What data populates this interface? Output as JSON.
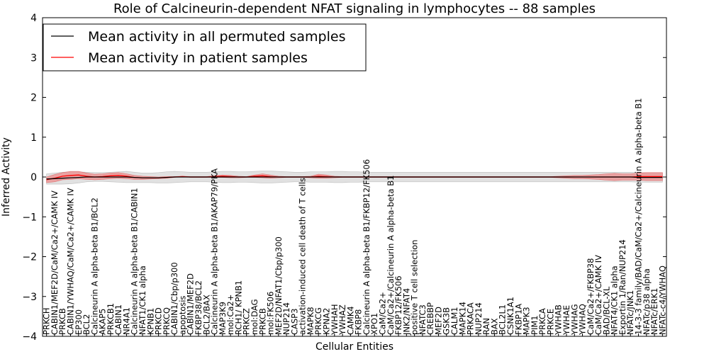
{
  "chart_data": {
    "type": "line",
    "title": "Role of Calcineurin-dependent NFAT signaling in lymphocytes -- 88 samples",
    "xlabel": "Cellular Entities",
    "ylabel": "Inferred Activity",
    "ylim": [
      -4,
      4
    ],
    "yticks": [
      -4,
      -3,
      -2,
      -1,
      0,
      1,
      2,
      3,
      4
    ],
    "ytick_labels": [
      "−4",
      "−3",
      "−2",
      "−1",
      "0",
      "1",
      "2",
      "3",
      "4"
    ],
    "legend_position": "top-left",
    "categories": [
      "PRKCH",
      "CABIN1/MEF2D/CaM/Ca2+/CAMK IV",
      "PRKCB",
      "CABIN1/YWHAQ/CaM/Ca2+/CAMK IV",
      "EP300",
      "BCL2",
      "Calcineurin A alpha-beta B1/BCL2",
      "AKAP5",
      "PRKCB1",
      "CABIN1",
      "NR4A1",
      "Calcineurin A alpha-beta B1/CABIN1",
      "NFAT1/CK1 alpha",
      "KPNB1",
      "PRKCD",
      "PRKCQ",
      "CABIN1/Cbp/p300",
      "apoptosis",
      "CABIN1/MEF2D",
      "FKBP38/BCL2",
      "BCL2/BAX",
      "Calcineurin A alpha-beta B1/AKAP79/PKA",
      "MAP3K9",
      "mol:Ca2+",
      "RCH1/ KPNB1",
      "PRKCZ",
      "mol:DAG",
      "PRKCB",
      "mol:FK506",
      "MEF2D/NFAT1/Cbp/p300",
      "NUP214",
      "CASP3",
      "activation-induced cell death of T cells",
      "MAPK8",
      "PRKCG",
      "KPNA2",
      "YWHAH",
      "YWHAZ",
      "CAMK4",
      "FKBP8",
      "Calcineurin A alpha-beta B1/FKBP12/FK506",
      "XPO1",
      "CaM/Ca2+",
      "CaM/Ca2+/Calcineurin A alpha-beta B1",
      "FKBP12/FK506",
      "JNK2/NFAT4",
      "positive T cell selection",
      "NFATC3",
      "CREBBP",
      "MEF2D",
      "GSK3B",
      "CALM1",
      "MAPK14",
      "PRKACA",
      "NUP214",
      "RAN",
      "BAX",
      "BCL2L1",
      "CSNK1A1",
      "FKBP1A",
      "MAPK3",
      "PIM1",
      "PRKCA",
      "PRKCE",
      "YWHAB",
      "YWHAE",
      "YWHAG",
      "YWHAQ",
      "CaM/Ca2+/FKBP38",
      "CaM/Ca2+/CAMK IV",
      "BAD/BCL-XL",
      "NFAT4/CK1 alpha",
      "Exportin 1/Ran/NUP214",
      "NFATc/JNK1",
      "14-3-3 family/BAD/CaM/Ca2+/Calcineurin A alpha-beta B1",
      "NFATc/p38 alpha",
      "NFATc/ERK1",
      "NFATc-c4/YWHAQ"
    ],
    "series": [
      {
        "name": "Mean activity in all permuted samples",
        "color": "#000000",
        "values": [
          -0.05,
          -0.04,
          -0.03,
          -0.02,
          -0.01,
          0.0,
          0.0,
          0.0,
          0.0,
          0.0,
          0.0,
          -0.01,
          -0.02,
          -0.02,
          -0.02,
          -0.01,
          0.0,
          0.0,
          0.0,
          0.0,
          0.0,
          0.0,
          0.0,
          0.0,
          0.0,
          0.0,
          0.0,
          0.0,
          0.0,
          0.0,
          0.0,
          0.0,
          0.0,
          0.0,
          0.0,
          0.0,
          0.0,
          0.0,
          0.0,
          0.0,
          0.0,
          0.0,
          0.0,
          0.0,
          0.0,
          0.0,
          0.0,
          0.0,
          0.0,
          0.0,
          0.0,
          0.0,
          0.0,
          0.0,
          0.0,
          0.0,
          0.0,
          0.0,
          0.0,
          0.0,
          0.0,
          0.0,
          0.0,
          0.0,
          0.0,
          0.0,
          0.0,
          0.0,
          0.0,
          0.0,
          0.0,
          0.0,
          0.0,
          0.0,
          -0.01,
          -0.01,
          -0.01,
          -0.01
        ],
        "band": [
          0.13,
          0.14,
          0.15,
          0.15,
          0.14,
          0.12,
          0.11,
          0.11,
          0.12,
          0.13,
          0.14,
          0.13,
          0.12,
          0.12,
          0.13,
          0.14,
          0.14,
          0.13,
          0.12,
          0.12,
          0.12,
          0.13,
          0.14,
          0.14,
          0.13,
          0.13,
          0.14,
          0.15,
          0.15,
          0.14,
          0.13,
          0.12,
          0.12,
          0.13,
          0.13,
          0.13,
          0.14,
          0.14,
          0.13,
          0.13,
          0.12,
          0.12,
          0.12,
          0.12,
          0.12,
          0.12,
          0.12,
          0.12,
          0.12,
          0.12,
          0.12,
          0.12,
          0.12,
          0.12,
          0.12,
          0.12,
          0.12,
          0.12,
          0.12,
          0.12,
          0.12,
          0.12,
          0.12,
          0.12,
          0.12,
          0.12,
          0.12,
          0.12,
          0.12,
          0.12,
          0.12,
          0.12,
          0.12,
          0.12,
          0.12,
          0.12,
          0.12,
          0.12
        ]
      },
      {
        "name": "Mean activity in patient samples",
        "color": "#ff0000",
        "values": [
          -0.07,
          -0.03,
          0.02,
          0.04,
          0.05,
          0.02,
          0.0,
          0.01,
          0.03,
          0.04,
          0.02,
          -0.01,
          -0.02,
          -0.02,
          -0.02,
          -0.01,
          0.0,
          0.01,
          0.0,
          0.0,
          0.0,
          0.01,
          0.02,
          0.01,
          0.0,
          0.0,
          0.02,
          0.03,
          0.01,
          0.0,
          0.0,
          0.0,
          0.0,
          0.0,
          0.02,
          0.01,
          0.0,
          0.0,
          0.0,
          0.0,
          0.0,
          0.0,
          0.0,
          0.0,
          0.0,
          0.0,
          0.0,
          0.0,
          0.0,
          0.0,
          0.0,
          0.0,
          0.0,
          0.0,
          0.0,
          0.0,
          0.0,
          0.0,
          0.0,
          0.0,
          0.0,
          0.0,
          0.0,
          0.0,
          0.0,
          0.0,
          0.0,
          0.0,
          0.0,
          0.0,
          0.0,
          0.0,
          0.0,
          0.0,
          0.01,
          0.01,
          0.01,
          0.01
        ],
        "band": [
          0.07,
          0.09,
          0.09,
          0.1,
          0.09,
          0.08,
          0.07,
          0.07,
          0.07,
          0.07,
          0.06,
          0.05,
          0.04,
          0.03,
          0.02,
          0.02,
          0.01,
          0.01,
          0.01,
          0.01,
          0.01,
          0.02,
          0.03,
          0.03,
          0.02,
          0.01,
          0.03,
          0.05,
          0.04,
          0.02,
          0.01,
          0.01,
          0.01,
          0.02,
          0.05,
          0.04,
          0.02,
          0.01,
          0.01,
          0.01,
          0.01,
          0.01,
          0.01,
          0.01,
          0.01,
          0.01,
          0.01,
          0.01,
          0.01,
          0.01,
          0.01,
          0.01,
          0.01,
          0.01,
          0.01,
          0.01,
          0.01,
          0.01,
          0.01,
          0.01,
          0.01,
          0.01,
          0.01,
          0.01,
          0.02,
          0.03,
          0.04,
          0.04,
          0.05,
          0.06,
          0.08,
          0.09,
          0.08,
          0.08,
          0.09,
          0.1,
          0.1,
          0.1
        ]
      }
    ]
  }
}
